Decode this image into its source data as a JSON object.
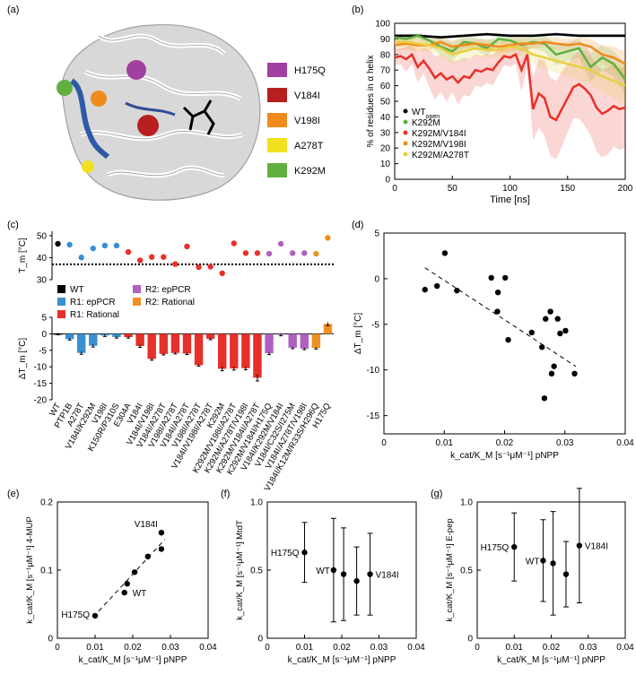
{
  "panel_labels": [
    "(a)",
    "(b)",
    "(c)",
    "(d)",
    "(e)",
    "(f)",
    "(g)"
  ],
  "colors": {
    "H175Q": "#a040a0",
    "V184I": "#b82020",
    "V198I": "#f08a1c",
    "A278T": "#f0e020",
    "K292M": "#60b040",
    "WT": "#000000",
    "epPCR_R1": "#3a8fd0",
    "rational_R1": "#e8302a",
    "epPCR_R2": "#b060c0",
    "rational_R2": "#f09020"
  },
  "panel_a": {
    "legend": [
      "H175Q",
      "V184I",
      "V198I",
      "A278T",
      "K292M"
    ],
    "legend_colors": [
      "#a040a0",
      "#b82020",
      "#f08a1c",
      "#f0e020",
      "#60b040"
    ]
  },
  "chart_data": [
    {
      "id": "b",
      "type": "line",
      "xlabel": "Time [ns]",
      "ylabel": "% of residues in α helix",
      "xlim": [
        0,
        200
      ],
      "ylim": [
        0,
        100
      ],
      "xticks": [
        0,
        50,
        100,
        150,
        200
      ],
      "yticks": [
        0,
        10,
        20,
        30,
        40,
        50,
        60,
        70,
        80,
        90,
        100
      ],
      "legend": [
        "WT",
        "K292M",
        "K292M/V184I",
        "K292M/V198I",
        "K292M/A278T"
      ],
      "legend_sub": [
        "open",
        "",
        "",
        "",
        ""
      ],
      "series": [
        {
          "name": "WT open",
          "color": "#000000",
          "x": [
            0,
            20,
            40,
            60,
            80,
            100,
            120,
            140,
            160,
            180,
            200
          ],
          "y": [
            92,
            92,
            91,
            92,
            93,
            92,
            92,
            93,
            92,
            92,
            92
          ],
          "band": [
            1,
            1,
            1,
            1,
            1,
            1,
            1,
            1,
            1,
            1,
            1
          ]
        },
        {
          "name": "K292M",
          "color": "#60b040",
          "x": [
            0,
            10,
            20,
            30,
            40,
            50,
            60,
            70,
            80,
            90,
            100,
            110,
            120,
            130,
            140,
            150,
            160,
            170,
            180,
            190,
            200
          ],
          "y": [
            91,
            90,
            92,
            89,
            85,
            82,
            88,
            87,
            84,
            90,
            89,
            86,
            88,
            87,
            80,
            82,
            84,
            72,
            78,
            74,
            64
          ],
          "band": [
            2,
            3,
            2,
            3,
            5,
            6,
            4,
            4,
            5,
            3,
            3,
            4,
            4,
            5,
            7,
            6,
            6,
            9,
            8,
            8,
            10
          ]
        },
        {
          "name": "K292M/V184I",
          "color": "#e8302a",
          "x": [
            0,
            5,
            10,
            15,
            20,
            25,
            30,
            35,
            40,
            45,
            50,
            55,
            60,
            65,
            70,
            75,
            80,
            85,
            90,
            95,
            100,
            105,
            110,
            115,
            120,
            125,
            130,
            135,
            140,
            145,
            150,
            155,
            160,
            165,
            170,
            175,
            180,
            185,
            190,
            195,
            200
          ],
          "y": [
            78,
            79,
            77,
            80,
            72,
            76,
            71,
            65,
            68,
            64,
            66,
            62,
            66,
            65,
            70,
            69,
            71,
            70,
            75,
            79,
            78,
            80,
            70,
            80,
            45,
            55,
            52,
            40,
            38,
            45,
            52,
            59,
            61,
            58,
            54,
            46,
            42,
            44,
            47,
            45,
            46
          ],
          "band": [
            5,
            5,
            8,
            6,
            10,
            8,
            12,
            14,
            12,
            14,
            10,
            14,
            12,
            12,
            10,
            10,
            9,
            10,
            8,
            6,
            6,
            6,
            14,
            8,
            20,
            22,
            24,
            25,
            25,
            24,
            22,
            20,
            22,
            24,
            26,
            28,
            28,
            28,
            26,
            26,
            26
          ]
        },
        {
          "name": "K292M/V198I",
          "color": "#f08a1c",
          "x": [
            0,
            10,
            20,
            30,
            40,
            50,
            60,
            70,
            80,
            90,
            100,
            110,
            120,
            130,
            140,
            150,
            160,
            170,
            180,
            190,
            200
          ],
          "y": [
            86,
            87,
            86,
            86,
            88,
            85,
            86,
            87,
            86,
            85,
            86,
            87,
            87,
            88,
            87,
            86,
            87,
            85,
            80,
            78,
            74
          ],
          "band": [
            4,
            4,
            4,
            3,
            3,
            4,
            4,
            3,
            4,
            4,
            4,
            4,
            3,
            3,
            4,
            4,
            4,
            5,
            6,
            7,
            8
          ]
        },
        {
          "name": "K292M/A278T",
          "color": "#e8d040",
          "x": [
            0,
            10,
            20,
            30,
            40,
            50,
            60,
            70,
            80,
            90,
            100,
            110,
            120,
            130,
            140,
            150,
            160,
            170,
            180,
            190,
            200
          ],
          "y": [
            88,
            88,
            87,
            86,
            84,
            80,
            82,
            84,
            83,
            83,
            85,
            84,
            80,
            78,
            76,
            74,
            72,
            70,
            66,
            63,
            60
          ],
          "band": [
            3,
            3,
            4,
            4,
            5,
            6,
            6,
            5,
            5,
            5,
            5,
            5,
            6,
            7,
            8,
            8,
            9,
            9,
            10,
            11,
            12
          ]
        }
      ]
    },
    {
      "id": "c_top",
      "type": "scatter",
      "ylabel": "T_m [°C]",
      "ylim": [
        30,
        52
      ],
      "yticks": [
        30,
        40,
        50
      ],
      "threshold": 37,
      "categories": [
        "WT",
        "PTP1B",
        "A278T",
        "V184I/K292M",
        "V198I",
        "K150R/P310S",
        "E304A",
        "V184I",
        "V184I/V198I",
        "V184I/A278T",
        "V198I/A278T",
        "V184I/A278T",
        "V198I/A278T",
        "V184I/V198I/A278T",
        "K292M",
        "K292M/V198I/A278T",
        "K292M/A278T/V198I",
        "K292M/V184I/A278T",
        "K292M/V184I/H175Q",
        "V184I/K292M/V184I",
        "V184I/C32S/I275M",
        "V184I/A278T/V198I",
        "V184I/K12M/R33S/H296Q",
        "H175Q"
      ],
      "group": [
        "WT",
        "R1e",
        "R1e",
        "R1e",
        "R1e",
        "R1e",
        "R1r",
        "R1r",
        "R1r",
        "R1r",
        "R1r",
        "R1r",
        "R1r",
        "R1r",
        "R1r",
        "R1r",
        "R1r",
        "R1r",
        "R2e",
        "R2e",
        "R2e",
        "R2e",
        "R2r",
        "R2r"
      ],
      "values": [
        46.3,
        45.9,
        40.1,
        44.2,
        45.5,
        45.5,
        42.6,
        38.8,
        40.3,
        40.3,
        37.1,
        45.1,
        35.7,
        35.9,
        32.9,
        46.5,
        42.1,
        42.1,
        41.8,
        46.3,
        42.1,
        42.1,
        41.8,
        49.0
      ]
    },
    {
      "id": "c_bottom",
      "type": "bar",
      "ylabel": "ΔT_m [°C]",
      "ylim": [
        -20,
        5
      ],
      "yticks": [
        -20,
        -15,
        -10,
        -5,
        0,
        5
      ],
      "values": [
        0,
        -1.6,
        -5.8,
        -3.6,
        -0.5,
        -1.0,
        -1.0,
        -3.7,
        -7.6,
        -6.1,
        -5.8,
        -6.0,
        -9.5,
        -1.5,
        -10.6,
        -10.5,
        -10.4,
        -13.3,
        -5.9,
        -0.3,
        -4.2,
        -4.5,
        -4.3,
        3.0
      ],
      "errors": [
        0.3,
        0.3,
        0.4,
        0.4,
        0.3,
        0.3,
        0.3,
        0.4,
        0.4,
        0.3,
        0.3,
        0.3,
        0.3,
        0.3,
        0.6,
        0.5,
        0.5,
        1.0,
        0.4,
        0.3,
        0.3,
        0.3,
        0.3,
        0.5
      ],
      "legend": [
        "WT",
        "R1: epPCR",
        "R1: Rational",
        "R2: epPCR",
        "R2: Rational"
      ]
    },
    {
      "id": "d",
      "type": "scatter",
      "xlabel": "k_cat/K_M [s⁻¹μM⁻¹] pNPP",
      "ylabel": "ΔT_m [°C]",
      "xlim": [
        0,
        0.04
      ],
      "ylim": [
        -17,
        5
      ],
      "xticks": [
        0,
        0.01,
        0.02,
        0.03,
        0.04
      ],
      "yticks": [
        -15,
        -10,
        -5,
        0,
        5
      ],
      "x": [
        0.0068,
        0.0088,
        0.0101,
        0.0121,
        0.0178,
        0.0189,
        0.0188,
        0.0201,
        0.0206,
        0.0245,
        0.0262,
        0.0268,
        0.0276,
        0.0278,
        0.0282,
        0.0288,
        0.0292,
        0.0301,
        0.0316,
        0.0266
      ],
      "y": [
        -1.2,
        -0.8,
        2.8,
        -1.3,
        0.1,
        -1.5,
        -3.6,
        0.1,
        -6.7,
        -5.9,
        -7.5,
        -4.4,
        -3.6,
        -10.4,
        -9.6,
        -4.4,
        -6.0,
        -5.7,
        -10.4,
        -13.1
      ],
      "fit": [
        [
          0.0068,
          1.2
        ],
        [
          0.0318,
          -9.6
        ]
      ]
    },
    {
      "id": "e",
      "type": "scatter",
      "xlabel": "k_cat/K_M [s⁻¹μM⁻¹] pNPP",
      "ylabel": "k_cat/K_M [s⁻¹μM⁻¹] 4-MUP",
      "xlim": [
        0,
        0.04
      ],
      "ylim": [
        0,
        0.2
      ],
      "xticks": [
        0,
        0.01,
        0.02,
        0.03,
        0.04
      ],
      "yticks": [
        0,
        0.1,
        0.2
      ],
      "x": [
        0.01,
        0.0178,
        0.0185,
        0.0205,
        0.024,
        0.0276,
        0.0276
      ],
      "y": [
        0.033,
        0.067,
        0.08,
        0.097,
        0.12,
        0.131,
        0.155
      ],
      "labels": {
        "H175Q": [
          0.01,
          0.033
        ],
        "WT": [
          0.0185,
          0.08
        ],
        "V184I": [
          0.0276,
          0.155
        ]
      }
    },
    {
      "id": "f",
      "type": "scatter",
      "xlabel": "k_cat/K_M [s⁻¹μM⁻¹] pNPP",
      "ylabel": "k_cat/K_M [s⁻¹μM⁻¹] MtdT",
      "xlim": [
        0,
        0.04
      ],
      "ylim": [
        0,
        1.0
      ],
      "xticks": [
        0,
        0.01,
        0.02,
        0.03,
        0.04
      ],
      "yticks": [
        0,
        0.5,
        1.0
      ],
      "x": [
        0.01,
        0.0178,
        0.0205,
        0.024,
        0.0276
      ],
      "y": [
        0.63,
        0.5,
        0.47,
        0.42,
        0.47
      ],
      "errors": [
        0.22,
        0.38,
        0.34,
        0.25,
        0.3
      ],
      "labels": {
        "H175Q": [
          0.01,
          0.63
        ],
        "WT": [
          0.0178,
          0.5
        ],
        "V184I": [
          0.0276,
          0.47
        ]
      }
    },
    {
      "id": "g",
      "type": "scatter",
      "xlabel": "k_cat/K_M [s⁻¹μM⁻¹] pNPP",
      "ylabel": "k_cat/K_M [s⁻¹μM⁻¹] E-pep",
      "xlim": [
        0,
        0.04
      ],
      "ylim": [
        0,
        1.0
      ],
      "xticks": [
        0,
        0.01,
        0.02,
        0.03,
        0.04
      ],
      "yticks": [
        0,
        0.5,
        1.0
      ],
      "x": [
        0.01,
        0.0178,
        0.0205,
        0.024,
        0.0276
      ],
      "y": [
        0.67,
        0.57,
        0.55,
        0.47,
        0.68
      ],
      "errors": [
        0.25,
        0.3,
        0.38,
        0.24,
        0.42
      ],
      "labels": {
        "H175Q": [
          0.01,
          0.67
        ],
        "WT": [
          0.0178,
          0.57
        ],
        "V184I": [
          0.0276,
          0.68
        ]
      }
    }
  ]
}
